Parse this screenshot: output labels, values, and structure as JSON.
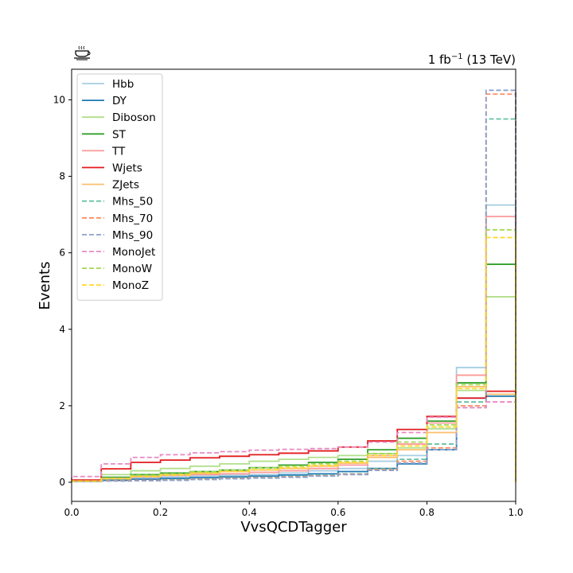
{
  "chart_data": {
    "type": "line",
    "xlabel": "VvsQCDTagger",
    "ylabel": "Events",
    "lumi_text": {
      "main": "1 fb",
      "sup": "−1",
      "tail": " (13 TeV)"
    },
    "xlim": [
      0.0,
      1.0
    ],
    "ylim": [
      -0.5,
      10.8
    ],
    "xticks": [
      "0.0",
      "0.2",
      "0.4",
      "0.6",
      "0.8",
      "1.0"
    ],
    "yticks": [
      "0",
      "2",
      "4",
      "6",
      "8",
      "10"
    ],
    "grid": false,
    "legend_position": "upper-left",
    "bin_edges": [
      0.0,
      0.0667,
      0.1333,
      0.2,
      0.2667,
      0.3333,
      0.4,
      0.4667,
      0.5333,
      0.6,
      0.6667,
      0.7333,
      0.8,
      0.8667,
      0.9333,
      1.0
    ],
    "series": [
      {
        "name": "Hbb",
        "color": "#a6cee3",
        "dashed": false,
        "values": [
          0.03,
          0.08,
          0.12,
          0.14,
          0.16,
          0.18,
          0.2,
          0.24,
          0.3,
          0.36,
          0.55,
          0.7,
          1.4,
          3.0,
          7.25
        ]
      },
      {
        "name": "DY",
        "color": "#1f78b4",
        "dashed": false,
        "values": [
          0.02,
          0.05,
          0.08,
          0.1,
          0.12,
          0.14,
          0.16,
          0.19,
          0.22,
          0.28,
          0.36,
          0.48,
          0.85,
          2.2,
          2.25
        ]
      },
      {
        "name": "Diboson",
        "color": "#b2df8a",
        "dashed": false,
        "values": [
          0.05,
          0.2,
          0.3,
          0.36,
          0.42,
          0.48,
          0.55,
          0.6,
          0.65,
          0.7,
          0.75,
          0.9,
          1.4,
          2.4,
          4.85
        ]
      },
      {
        "name": "ST",
        "color": "#33a02c",
        "dashed": false,
        "values": [
          0.04,
          0.13,
          0.2,
          0.24,
          0.28,
          0.32,
          0.38,
          0.45,
          0.52,
          0.6,
          0.85,
          1.15,
          1.6,
          2.6,
          5.7
        ]
      },
      {
        "name": "TT",
        "color": "#fb9a99",
        "dashed": false,
        "values": [
          0.04,
          0.1,
          0.14,
          0.18,
          0.2,
          0.22,
          0.26,
          0.3,
          0.36,
          0.45,
          0.7,
          1.0,
          1.55,
          2.8,
          6.95
        ]
      },
      {
        "name": "Wjets",
        "color": "#e31a1c",
        "dashed": false,
        "values": [
          0.06,
          0.35,
          0.52,
          0.58,
          0.64,
          0.68,
          0.72,
          0.76,
          0.82,
          0.92,
          1.08,
          1.38,
          1.72,
          2.2,
          2.38
        ]
      },
      {
        "name": "ZJets",
        "color": "#fdbf6f",
        "dashed": false,
        "values": [
          0.03,
          0.1,
          0.16,
          0.2,
          0.24,
          0.28,
          0.32,
          0.36,
          0.42,
          0.5,
          0.65,
          0.85,
          1.3,
          2.5,
          2.3
        ]
      },
      {
        "name": "Mhs_50",
        "color": "#66c2a5",
        "dashed": true,
        "values": [
          0.02,
          0.04,
          0.05,
          0.07,
          0.09,
          0.11,
          0.13,
          0.15,
          0.18,
          0.22,
          0.35,
          0.6,
          1.0,
          2.1,
          9.5
        ]
      },
      {
        "name": "Mhs_70",
        "color": "#fc8d62",
        "dashed": true,
        "values": [
          0.02,
          0.04,
          0.05,
          0.06,
          0.08,
          0.1,
          0.12,
          0.14,
          0.17,
          0.21,
          0.33,
          0.55,
          0.9,
          2.0,
          10.15
        ]
      },
      {
        "name": "Mhs_90",
        "color": "#8da0cb",
        "dashed": true,
        "values": [
          0.02,
          0.03,
          0.04,
          0.05,
          0.07,
          0.09,
          0.11,
          0.13,
          0.16,
          0.2,
          0.31,
          0.5,
          0.85,
          1.95,
          10.25
        ]
      },
      {
        "name": "MonoJet",
        "color": "#e78ac3",
        "dashed": true,
        "values": [
          0.15,
          0.48,
          0.65,
          0.72,
          0.77,
          0.8,
          0.84,
          0.86,
          0.88,
          0.92,
          1.05,
          1.3,
          1.7,
          1.95,
          2.1
        ]
      },
      {
        "name": "MonoW",
        "color": "#a6d854",
        "dashed": true,
        "values": [
          0.03,
          0.1,
          0.18,
          0.22,
          0.28,
          0.32,
          0.38,
          0.42,
          0.48,
          0.55,
          0.75,
          1.05,
          1.5,
          2.55,
          6.6
        ]
      },
      {
        "name": "MonoZ",
        "color": "#ffd92f",
        "dashed": true,
        "values": [
          0.03,
          0.09,
          0.15,
          0.19,
          0.24,
          0.28,
          0.33,
          0.38,
          0.44,
          0.52,
          0.7,
          0.95,
          1.45,
          2.45,
          6.4
        ]
      }
    ]
  }
}
